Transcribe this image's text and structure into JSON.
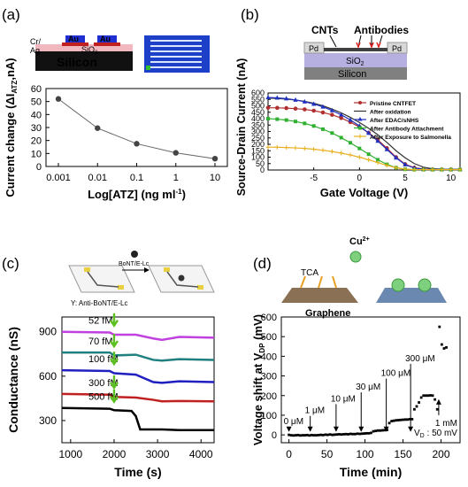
{
  "panels": {
    "a": {
      "tag": "(a)",
      "schem": {
        "cr": "Cr/",
        "ag": "Ag",
        "au": "Au",
        "sio2": "SiO",
        "sio2_sub": "2",
        "silicon": "Silicon"
      }
    },
    "b": {
      "tag": "(b)",
      "schem": {
        "cnts": "CNTs",
        "antibodies": "Antibodies",
        "pd": "Pd",
        "sio2": "SiO",
        "sio2_sub": "2",
        "silicon": "Silicon"
      }
    },
    "c": {
      "tag": "(c)",
      "schem": {
        "bont": "BoNT/E-Lc",
        "anti": "Y: Anti-BoNT/E-Lc"
      }
    },
    "d": {
      "tag": "(d)",
      "schem": {
        "cu": "Cu",
        "cu_sup": "2+",
        "tca": "TCA",
        "graphene": "Graphene"
      }
    }
  },
  "colors": {
    "red_label": "#e02020",
    "green_arrow": "#5cc020",
    "blue_chip": "#1e3fc8"
  },
  "chart_data": [
    {
      "panel": "a",
      "type": "line",
      "x": [
        0.001,
        0.01,
        0.1,
        1,
        10
      ],
      "xticks": [
        "0.001",
        "0.01",
        "0.1",
        "1",
        "10"
      ],
      "values": [
        52,
        29.5,
        17.5,
        10.5,
        6
      ],
      "errors": [
        2,
        1.5,
        2,
        2,
        2
      ],
      "xscale": "log",
      "ylim": [
        0,
        60
      ],
      "yticks": [
        "0",
        "10",
        "20",
        "30",
        "40",
        "50",
        "60"
      ],
      "xlabel": "Log[ATZ] (ng ml",
      "xlabel_sup": "-1",
      "xlabel_end": ")",
      "ylabel": "Current change (ΔI",
      "ylabel_sub": "ATZ",
      "ylabel_end": ",nA)"
    },
    {
      "panel": "b",
      "type": "line",
      "xlim": [
        -10,
        11
      ],
      "ylim": [
        0,
        600
      ],
      "xticks": [
        "-5",
        "0",
        "5",
        "10"
      ],
      "yticks": [
        "0",
        "50",
        "100",
        "150",
        "200",
        "250",
        "300",
        "350",
        "400",
        "450",
        "500",
        "550",
        "600"
      ],
      "xlabel": "Gate Voltage (V)",
      "ylabel": "Source-Drain Current (nA)",
      "legend_position": "top-right",
      "series": [
        {
          "name": "Pristine CNTFET",
          "color": "#b03030",
          "marker": "circle",
          "x": [
            -10,
            -9,
            -8,
            -7,
            -6,
            -5,
            -4,
            -3,
            -2,
            -1,
            0,
            1,
            2,
            3,
            4,
            5,
            6,
            7,
            8,
            9,
            10,
            11
          ],
          "y": [
            485,
            484,
            482,
            478,
            472,
            462,
            448,
            430,
            405,
            373,
            335,
            290,
            235,
            170,
            100,
            45,
            18,
            8,
            5,
            4,
            4,
            4
          ]
        },
        {
          "name": "After oxidation",
          "color": "#333333",
          "marker": "none",
          "x": [
            -10,
            -9,
            -8,
            -7,
            -6,
            -5,
            -4,
            -3,
            -2,
            -1,
            0,
            1,
            2,
            3,
            4,
            5,
            6,
            7,
            8,
            9,
            10,
            11
          ],
          "y": [
            560,
            557,
            552,
            545,
            535,
            520,
            500,
            475,
            445,
            410,
            370,
            325,
            275,
            215,
            150,
            95,
            50,
            22,
            10,
            6,
            5,
            5
          ]
        },
        {
          "name": "After EDAC/sNHS",
          "color": "#2030c0",
          "marker": "triangle",
          "x": [
            -10,
            -9,
            -8,
            -7,
            -6,
            -5,
            -4,
            -3,
            -2,
            -1,
            0,
            1,
            2,
            3,
            4,
            5,
            6,
            7,
            8,
            9,
            10,
            11
          ],
          "y": [
            565,
            562,
            556,
            546,
            532,
            514,
            492,
            464,
            430,
            390,
            343,
            288,
            226,
            160,
            95,
            42,
            15,
            6,
            4,
            4,
            4,
            4
          ]
        },
        {
          "name": "After Antibody Attachment",
          "color": "#30b030",
          "marker": "square",
          "x": [
            -10,
            -9,
            -8,
            -7,
            -6,
            -5,
            -4,
            -3,
            -2,
            -1,
            0,
            1,
            2,
            3,
            4,
            5,
            6,
            7,
            8,
            9,
            10,
            11
          ],
          "y": [
            400,
            396,
            389,
            378,
            363,
            343,
            318,
            288,
            252,
            212,
            168,
            123,
            80,
            44,
            18,
            6,
            3,
            3,
            3,
            3,
            3,
            3
          ]
        },
        {
          "name": "After Exposure to Salmonella",
          "color": "#e8b020",
          "marker": "plus",
          "x": [
            -10,
            -9,
            -8,
            -7,
            -6,
            -5,
            -4,
            -3,
            -2,
            -1,
            0,
            1,
            2,
            3,
            4,
            5,
            6,
            7,
            8,
            9,
            10,
            11
          ],
          "y": [
            178,
            177,
            175,
            172,
            168,
            162,
            154,
            144,
            132,
            117,
            100,
            80,
            58,
            36,
            18,
            7,
            3,
            3,
            3,
            3,
            3,
            3
          ]
        }
      ]
    },
    {
      "panel": "c",
      "type": "line",
      "xlim": [
        800,
        4300
      ],
      "ylim": [
        150,
        1000
      ],
      "xticks": [
        "1000",
        "2000",
        "3000",
        "4000"
      ],
      "yticks": [
        "300",
        "600",
        "900"
      ],
      "xlabel": "Time (s)",
      "ylabel": "Conductance (nS)",
      "series": [
        {
          "label": "52 fM",
          "color": "#c040e0",
          "x": [
            800,
            1900,
            2000,
            2500,
            2900,
            3100,
            3500,
            4300
          ],
          "y": [
            900,
            895,
            880,
            880,
            855,
            845,
            865,
            860
          ]
        },
        {
          "label": "70 fM",
          "color": "#208080",
          "x": [
            800,
            1900,
            2000,
            2500,
            2900,
            3100,
            3500,
            4300
          ],
          "y": [
            760,
            760,
            740,
            745,
            710,
            705,
            715,
            710
          ]
        },
        {
          "label": "100 fM",
          "color": "#2020c0",
          "x": [
            800,
            1900,
            2000,
            2500,
            2900,
            3100,
            3500,
            4300
          ],
          "y": [
            640,
            635,
            620,
            610,
            560,
            555,
            565,
            560
          ]
        },
        {
          "label": "300 fM",
          "color": "#c02020",
          "x": [
            800,
            1900,
            2000,
            2500,
            2900,
            3100,
            3500,
            4300
          ],
          "y": [
            480,
            475,
            460,
            455,
            440,
            430,
            432,
            430
          ]
        },
        {
          "label": "500 fM",
          "color": "#000000",
          "x": [
            800,
            1900,
            2000,
            2400,
            2500,
            2600,
            3100,
            3500,
            4300
          ],
          "y": [
            385,
            380,
            370,
            365,
            330,
            240,
            240,
            235,
            235
          ]
        }
      ]
    },
    {
      "panel": "d",
      "type": "scatter",
      "xlim": [
        -10,
        225
      ],
      "ylim": [
        -40,
        600
      ],
      "xticks": [
        "0",
        "50",
        "100",
        "150",
        "200"
      ],
      "yticks": [
        "0",
        "100",
        "200",
        "300",
        "400",
        "500",
        "600"
      ],
      "xlabel": "Time (min)",
      "ylabel": "Voltage shift at V",
      "ylabel_sub": "DP",
      "ylabel_end": " (mV)",
      "annotation_vd": "V",
      "annotation_vd_sub": "D",
      "annotation_vd_end": " : 50 mV",
      "annotations": [
        "0 μM",
        "1 μM",
        "10 μM",
        "30 μM",
        "100 μM",
        "300 μM",
        "1 mM"
      ],
      "annotation_x": [
        0,
        28,
        62,
        95,
        128,
        160,
        190
      ],
      "annotation_y": [
        55,
        110,
        170,
        230,
        300,
        375,
        -50
      ],
      "x": [
        0,
        3,
        6,
        9,
        12,
        15,
        18,
        21,
        24,
        27,
        30,
        33,
        36,
        39,
        42,
        45,
        48,
        51,
        54,
        57,
        60,
        63,
        66,
        69,
        72,
        75,
        78,
        81,
        84,
        87,
        90,
        93,
        96,
        99,
        102,
        105,
        108,
        111,
        114,
        117,
        120,
        123,
        126,
        129,
        132,
        135,
        138,
        141,
        144,
        147,
        150,
        153,
        156,
        159,
        162,
        165,
        168,
        171,
        174,
        177,
        180,
        183,
        186,
        189,
        192,
        195,
        198,
        201,
        204,
        207
      ],
      "y": [
        0,
        -2,
        -3,
        -2,
        -1,
        -3,
        -2,
        -2,
        -1,
        -3,
        -1,
        -2,
        -2,
        -1,
        0,
        -1,
        1,
        0,
        2,
        0,
        1,
        2,
        3,
        2,
        3,
        4,
        3,
        5,
        4,
        4,
        6,
        5,
        6,
        7,
        8,
        8,
        10,
        18,
        20,
        22,
        22,
        23,
        24,
        25,
        60,
        70,
        72,
        74,
        75,
        76,
        77,
        78,
        78,
        80,
        80,
        130,
        145,
        165,
        190,
        200,
        200,
        200,
        201,
        200,
        180,
        130,
        550,
        460,
        440,
        445
      ]
    }
  ]
}
